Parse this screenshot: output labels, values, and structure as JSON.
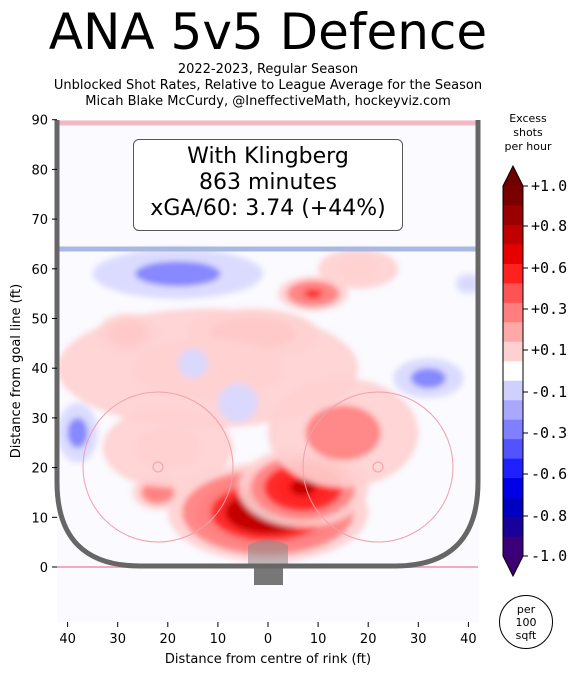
{
  "header": {
    "title": "ANA 5v5 Defence",
    "line1": "2022-2023, Regular Season",
    "line2": "Unblocked Shot Rates, Relative to League Average for the Season",
    "line3": "Micah Blake McCurdy, @IneffectiveMath, hockeyviz.com"
  },
  "infobox": {
    "with": "With Klingberg",
    "minutes": "863 minutes",
    "xga": "xGA/60: 3.74 (+44%)"
  },
  "colorbar": {
    "title_lines": [
      "Excess",
      "shots",
      "per hour"
    ],
    "ticks": [
      "+1.0",
      "+0.8",
      "+0.6",
      "+0.3",
      "+0.1",
      "-0.1",
      "-0.3",
      "-0.6",
      "-0.8",
      "-1.0"
    ],
    "colors": [
      "#7a0000",
      "#9a0000",
      "#c00000",
      "#e60000",
      "#ff2020",
      "#ff5252",
      "#ff7f7f",
      "#ffa8a8",
      "#ffd0d0",
      "#ffffff",
      "#d0d0ff",
      "#a8a8ff",
      "#7f7fff",
      "#5252ff",
      "#2020ff",
      "#0000e6",
      "#0000c0",
      "#1a009a",
      "#3a007a"
    ],
    "top_color": "#6e0000",
    "bottom_color": "#3c0072",
    "per_unit_lines": [
      "per",
      "100",
      "sqft"
    ]
  },
  "chart_data": {
    "type": "heatmap",
    "title": "ANA 5v5 Defence",
    "xlabel": "Distance from centre of rink (ft)",
    "ylabel": "Distance from goal line (ft)",
    "xlim": [
      -42,
      42
    ],
    "ylim": [
      -11,
      90
    ],
    "x_tick_labels": [
      "40",
      "30",
      "20",
      "10",
      "0",
      "10",
      "20",
      "30",
      "40"
    ],
    "x_ticks": [
      -40,
      -30,
      -20,
      -10,
      0,
      10,
      20,
      30,
      40
    ],
    "y_ticks": [
      0,
      10,
      20,
      30,
      40,
      50,
      60,
      70,
      80,
      90
    ],
    "legend": "colorbar right",
    "blobs": [
      {
        "x": 0,
        "y": 11,
        "value": 1.0,
        "w": 40,
        "h": 20
      },
      {
        "x": 7,
        "y": 16,
        "value": 0.8,
        "w": 26,
        "h": 16
      },
      {
        "x": -22,
        "y": 15,
        "value": 0.4,
        "w": 10,
        "h": 7
      },
      {
        "x": 15,
        "y": 27,
        "value": 0.3,
        "w": 30,
        "h": 22
      },
      {
        "x": -28,
        "y": 47,
        "value": 0.4,
        "w": 12,
        "h": 8
      },
      {
        "x": -3,
        "y": 47,
        "value": 0.4,
        "w": 26,
        "h": 10
      },
      {
        "x": 9,
        "y": 55,
        "value": 0.6,
        "w": 14,
        "h": 7
      },
      {
        "x": -12,
        "y": 40,
        "value": 0.15,
        "w": 60,
        "h": 24
      },
      {
        "x": -20,
        "y": 24,
        "value": 0.15,
        "w": 26,
        "h": 16
      },
      {
        "x": 18,
        "y": 60,
        "value": 0.15,
        "w": 16,
        "h": 8
      },
      {
        "x": -18,
        "y": 59,
        "value": -0.35,
        "w": 34,
        "h": 10
      },
      {
        "x": 32,
        "y": 38,
        "value": -0.2,
        "w": 14,
        "h": 8
      },
      {
        "x": -38,
        "y": 27,
        "value": -0.3,
        "w": 8,
        "h": 12
      },
      {
        "x": -6,
        "y": 33,
        "value": -0.15,
        "w": 8,
        "h": 8
      },
      {
        "x": -15,
        "y": 41,
        "value": -0.15,
        "w": 6,
        "h": 6
      },
      {
        "x": 40,
        "y": 57,
        "value": -0.15,
        "w": 5,
        "h": 4
      }
    ]
  }
}
